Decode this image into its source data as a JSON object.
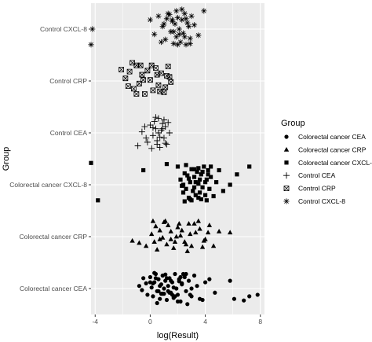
{
  "chart_data": {
    "type": "scatter",
    "title": "",
    "xlabel": "log(Result)",
    "ylabel": "Group",
    "xlim": [
      -4.3,
      8.3
    ],
    "x_ticks": [
      -4,
      0,
      4,
      8
    ],
    "x_tick_labels": [
      "-4",
      "0",
      "4",
      "8"
    ],
    "categories": [
      "Colorectal cancer CEA",
      "Colorectal cancer CRP",
      "Colorectal cancer CXCL-8",
      "Control CEA",
      "Control CRP",
      "Control CXCL-8"
    ],
    "background": "#ebebeb",
    "gridline_color": "#ffffff",
    "grid": true,
    "legend": {
      "title": "Group",
      "placement": "right",
      "entries": [
        {
          "label": "Colorectal cancer CEA",
          "shape": "circle"
        },
        {
          "label": "Colorectal cancer CRP",
          "shape": "triangle"
        },
        {
          "label": "Colorectal cancer CXCL-8",
          "shape": "square"
        },
        {
          "label": "Control CEA",
          "shape": "plus"
        },
        {
          "label": "Control CRP",
          "shape": "boxed-x"
        },
        {
          "label": "Control CXCL-8",
          "shape": "asterisk"
        }
      ]
    },
    "series": [
      {
        "name": "Colorectal cancer CEA",
        "shape": "circle",
        "x": [
          -0.8,
          -0.6,
          -0.3,
          -0.2,
          0.0,
          0.1,
          0.2,
          0.3,
          0.4,
          0.5,
          0.6,
          0.7,
          0.8,
          0.9,
          1.0,
          1.1,
          1.2,
          1.3,
          1.4,
          1.5,
          1.6,
          1.7,
          1.8,
          1.9,
          2.0,
          2.1,
          2.2,
          2.3,
          2.5,
          2.6,
          2.8,
          3.0,
          3.2,
          3.4,
          3.6,
          4.0,
          4.3,
          4.7,
          5.8,
          6.1,
          6.8,
          7.2,
          7.8,
          0.3,
          0.5,
          0.7,
          0.9,
          1.1,
          1.3,
          1.5,
          1.7,
          2.0,
          2.3,
          2.6,
          2.9,
          -0.5,
          0.0,
          0.6,
          1.2,
          1.8,
          2.4,
          3.0,
          3.8,
          0.2,
          0.8,
          1.4,
          2.1,
          2.7,
          0.4,
          1.0,
          1.6,
          2.2
        ],
        "y": [
          0.05,
          -0.03,
          0.1,
          -0.12,
          0.22,
          0.02,
          -0.15,
          0.12,
          0.28,
          -0.05,
          0.18,
          -0.2,
          0.08,
          0.25,
          -0.1,
          0.15,
          -0.22,
          0.05,
          0.2,
          -0.08,
          0.12,
          -0.18,
          0.28,
          0.0,
          -0.12,
          0.18,
          -0.25,
          0.1,
          0.22,
          -0.05,
          0.15,
          -0.15,
          0.25,
          0.05,
          -0.2,
          0.12,
          0.18,
          -0.08,
          0.15,
          -0.2,
          -0.23,
          -0.15,
          -0.12,
          0.3,
          -0.28,
          0.05,
          -0.1,
          0.27,
          -0.05,
          0.15,
          0.02,
          -0.25,
          0.08,
          0.28,
          -0.12,
          0.2,
          0.12,
          -0.05,
          0.2,
          -0.15,
          0.28,
          0.0,
          -0.22,
          0.1,
          -0.1,
          -0.08,
          0.14,
          -0.3,
          0.2,
          0.0,
          -0.12,
          0.22
        ]
      },
      {
        "name": "Colorectal cancer CRP",
        "shape": "triangle",
        "x": [
          -1.3,
          -0.8,
          -0.3,
          0.1,
          0.4,
          0.7,
          1.0,
          1.2,
          1.5,
          1.7,
          2.0,
          2.2,
          2.5,
          2.8,
          3.0,
          3.3,
          3.6,
          4.0,
          4.3,
          4.6,
          5.0,
          5.8,
          0.5,
          0.9,
          1.3,
          1.8,
          2.3,
          2.7,
          3.2,
          3.8,
          0.2,
          0.7,
          1.5,
          2.1,
          2.6,
          3.5,
          4.2,
          0.3,
          1.1,
          1.9,
          2.9,
          3.9
        ],
        "y": [
          -0.08,
          -0.12,
          -0.18,
          0.05,
          0.2,
          -0.05,
          0.28,
          -0.15,
          0.1,
          -0.22,
          0.18,
          0.02,
          -0.1,
          0.25,
          -0.18,
          0.08,
          0.15,
          -0.05,
          0.22,
          -0.18,
          0.1,
          0.08,
          -0.25,
          -0.02,
          0.22,
          -0.1,
          0.12,
          -0.28,
          0.25,
          -0.2,
          0.3,
          0.12,
          -0.05,
          0.25,
          -0.15,
          0.3,
          0.08,
          -0.1,
          0.3,
          0.0,
          0.05,
          -0.08
        ]
      },
      {
        "name": "Colorectal cancer CXCL-8",
        "shape": "square",
        "x": [
          -4.3,
          -3.8,
          -0.5,
          1.2,
          2.0,
          2.2,
          2.4,
          2.5,
          2.6,
          2.7,
          2.8,
          2.9,
          3.0,
          3.1,
          3.2,
          3.3,
          3.4,
          3.5,
          3.6,
          3.7,
          3.8,
          3.9,
          4.0,
          4.1,
          4.2,
          4.3,
          4.4,
          4.6,
          4.8,
          5.0,
          5.3,
          5.8,
          6.3,
          7.2,
          2.3,
          2.6,
          2.9,
          3.2,
          3.5,
          3.8,
          4.1,
          4.4,
          2.4,
          2.8,
          3.2,
          3.6,
          4.0,
          2.5,
          3.0,
          3.5,
          4.2,
          3.3,
          3.7
        ],
        "y": [
          0.42,
          -0.3,
          0.28,
          0.4,
          0.35,
          0.1,
          -0.15,
          0.22,
          -0.08,
          0.18,
          -0.25,
          0.05,
          0.3,
          -0.12,
          0.15,
          -0.2,
          0.25,
          0.02,
          -0.15,
          0.2,
          -0.05,
          0.35,
          -0.2,
          0.1,
          0.28,
          -0.08,
          0.15,
          -0.22,
          0.05,
          0.28,
          -0.12,
          0.0,
          0.2,
          0.35,
          -0.02,
          0.38,
          -0.28,
          0.3,
          -0.25,
          0.25,
          -0.3,
          0.35,
          0.0,
          0.12,
          -0.05,
          0.1,
          0.05,
          -0.32,
          -0.3,
          0.32,
          0.2,
          0.05,
          -0.28
        ]
      },
      {
        "name": "Control CEA",
        "shape": "plus",
        "x": [
          -0.9,
          -0.6,
          -0.4,
          -0.2,
          0.0,
          0.2,
          0.3,
          0.4,
          0.5,
          0.6,
          0.7,
          0.8,
          0.9,
          1.0,
          1.1,
          1.2,
          1.3,
          1.4,
          0.1,
          0.4,
          0.7,
          1.0,
          -0.3,
          0.2,
          0.6,
          1.1,
          0.5,
          0.9
        ],
        "y": [
          -0.25,
          0.02,
          0.12,
          -0.18,
          0.15,
          -0.05,
          0.22,
          0.08,
          -0.15,
          0.28,
          -0.28,
          0.05,
          0.18,
          -0.1,
          0.12,
          -0.22,
          0.2,
          0.0,
          -0.3,
          0.3,
          -0.08,
          0.25,
          -0.1,
          0.1,
          0.0,
          -0.2,
          -0.22,
          0.08
        ]
      },
      {
        "name": "Control CRP",
        "shape": "boxed-x",
        "x": [
          -2.1,
          -1.8,
          -1.5,
          -1.2,
          -1.0,
          -0.8,
          -0.6,
          -0.4,
          -0.2,
          0.0,
          0.2,
          0.4,
          0.6,
          0.8,
          1.0,
          1.2,
          1.5,
          -1.6,
          -1.0,
          -0.5,
          0.1,
          0.7,
          1.3,
          1.1,
          -1.3,
          -0.7,
          0.5,
          1.4
        ],
        "y": [
          0.22,
          0.05,
          0.18,
          -0.15,
          0.3,
          -0.05,
          0.12,
          -0.25,
          0.2,
          0.02,
          -0.18,
          0.25,
          -0.08,
          0.15,
          -0.22,
          0.1,
          -0.02,
          -0.1,
          -0.25,
          0.02,
          0.3,
          -0.2,
          0.28,
          -0.12,
          0.35,
          0.3,
          0.12,
          0.08
        ]
      },
      {
        "name": "Control CXCL-8",
        "shape": "asterisk",
        "x": [
          -4.3,
          -4.2,
          0.0,
          0.3,
          0.6,
          0.9,
          1.1,
          1.3,
          1.5,
          1.6,
          1.7,
          1.8,
          1.9,
          2.0,
          2.1,
          2.2,
          2.3,
          2.4,
          2.5,
          2.6,
          2.7,
          2.8,
          2.9,
          3.0,
          3.2,
          3.5,
          3.9,
          0.8,
          1.4,
          2.0,
          2.6,
          1.0,
          1.7,
          2.3,
          2.9,
          1.2,
          1.9,
          2.5,
          2.1,
          1.6
        ],
        "y": [
          -0.3,
          0.0,
          0.18,
          -0.1,
          0.25,
          0.05,
          -0.2,
          0.3,
          -0.05,
          0.15,
          -0.28,
          0.1,
          -0.15,
          0.22,
          0.0,
          -0.25,
          0.18,
          -0.08,
          0.3,
          -0.3,
          0.12,
          0.05,
          -0.18,
          0.25,
          0.08,
          -0.12,
          0.35,
          -0.25,
          0.28,
          -0.3,
          0.2,
          0.1,
          -0.05,
          0.38,
          -0.28,
          0.2,
          0.35,
          -0.15,
          -0.1,
          0.18
        ]
      }
    ]
  }
}
